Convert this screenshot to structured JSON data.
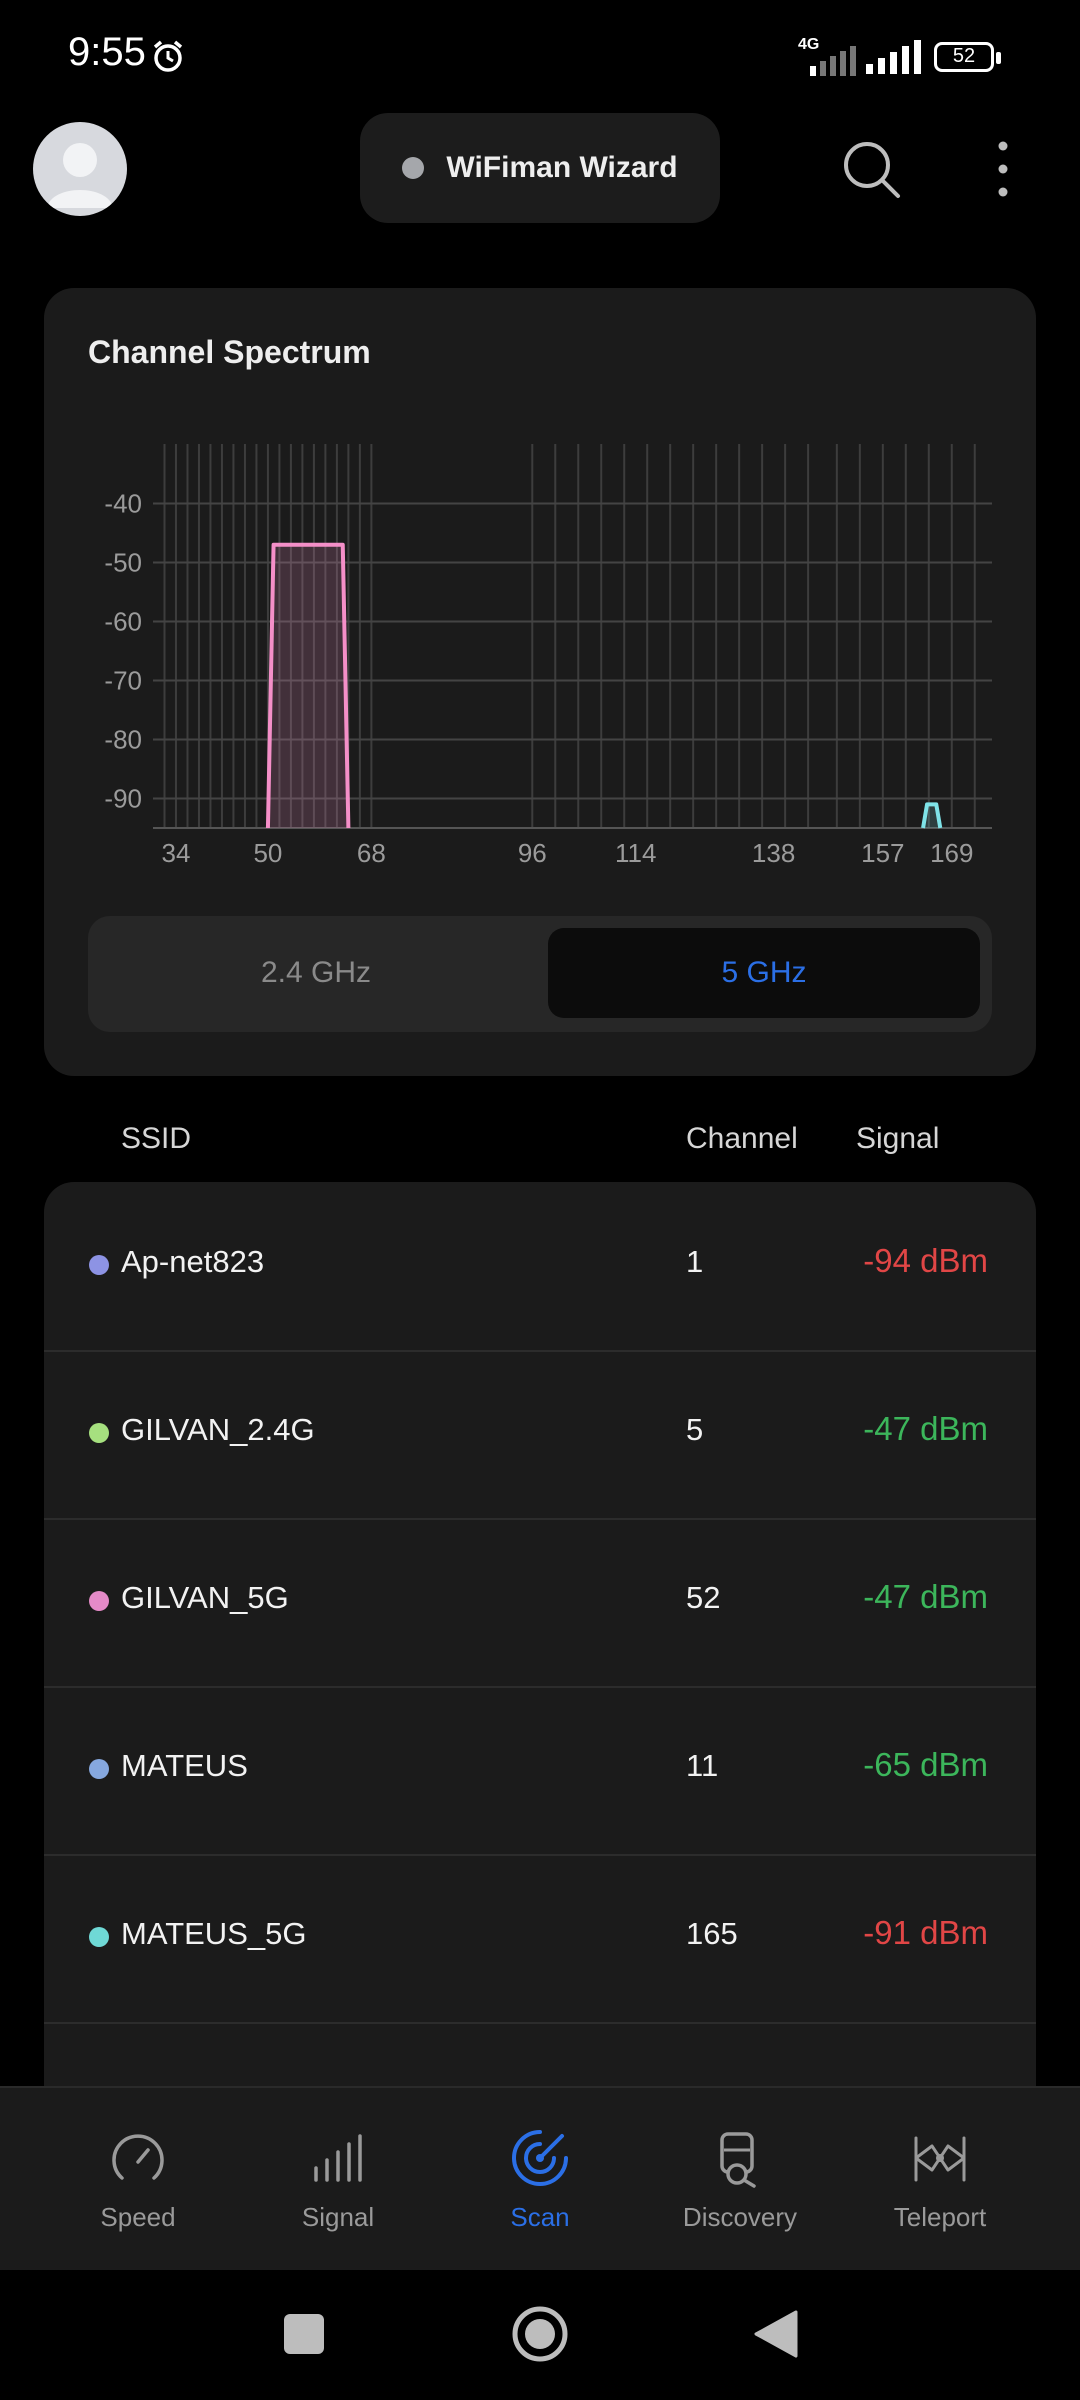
{
  "status": {
    "time": "9:55",
    "network": "4G",
    "battery": "52"
  },
  "header": {
    "title": "WiFiman Wizard"
  },
  "spectrum": {
    "title": "Channel Spectrum",
    "bands": [
      "2.4 GHz",
      "5 GHz"
    ],
    "selected_band": "5 GHz"
  },
  "chart_data": {
    "type": "area",
    "title": "",
    "xlabel": "",
    "ylabel": "",
    "x_ticks": [
      34,
      50,
      68,
      96,
      114,
      138,
      157,
      169
    ],
    "y_ticks": [
      -40,
      -50,
      -60,
      -70,
      -80,
      -90
    ],
    "ylim": [
      -95,
      -30
    ],
    "series": [
      {
        "name": "GILVAN_5G",
        "channel": 52,
        "range": [
          50,
          64
        ],
        "peak": -47,
        "color": "#f48fc8"
      },
      {
        "name": "MATEUS_5G",
        "channel": 165,
        "range": [
          164,
          167
        ],
        "peak": -91,
        "color": "#7fe3e8"
      }
    ]
  },
  "table": {
    "headers": {
      "ssid": "SSID",
      "channel": "Channel",
      "signal": "Signal"
    },
    "rows": [
      {
        "ssid": "Ap-net823",
        "channel": "1",
        "signal": "-94 dBm",
        "dot": "#8d93e4",
        "signal_color": "#e14646"
      },
      {
        "ssid": "GILVAN_2.4G",
        "channel": "5",
        "signal": "-47 dBm",
        "dot": "#a6e07f",
        "signal_color": "#3cb65b"
      },
      {
        "ssid": "GILVAN_5G",
        "channel": "52",
        "signal": "-47 dBm",
        "dot": "#e58ac8",
        "signal_color": "#3cb65b"
      },
      {
        "ssid": "MATEUS",
        "channel": "11",
        "signal": "-65 dBm",
        "dot": "#86a8df",
        "signal_color": "#3cb65b"
      },
      {
        "ssid": "MATEUS_5G",
        "channel": "165",
        "signal": "-91 dBm",
        "dot": "#6fd9d6",
        "signal_color": "#e14646"
      }
    ]
  },
  "nav": {
    "items": [
      {
        "label": "Speed",
        "icon": "speedometer-icon"
      },
      {
        "label": "Signal",
        "icon": "signal-bars-icon"
      },
      {
        "label": "Scan",
        "icon": "radar-icon"
      },
      {
        "label": "Discovery",
        "icon": "discovery-icon"
      },
      {
        "label": "Teleport",
        "icon": "teleport-icon"
      }
    ],
    "active": "Scan"
  }
}
